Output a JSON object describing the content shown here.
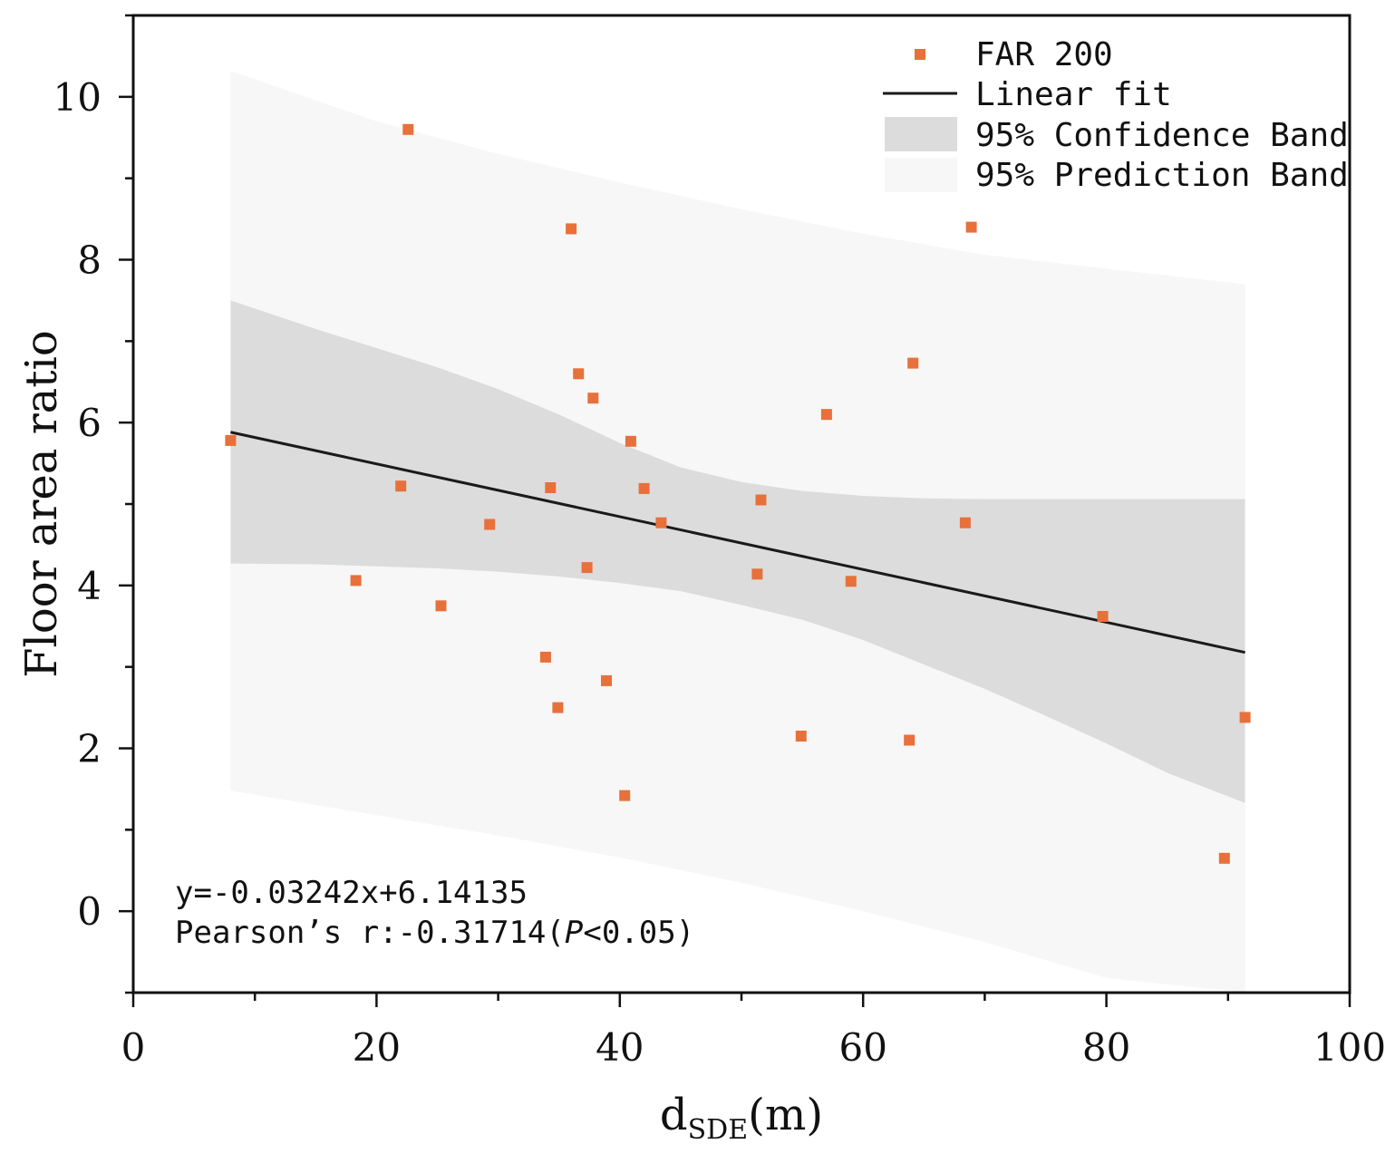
{
  "chart_data": {
    "type": "scatter",
    "title": "",
    "xlabel_main": "d",
    "xlabel_sub": "SDE",
    "xlabel_unit": "(m)",
    "ylabel": "Floor area ratio",
    "xlim": [
      0,
      100
    ],
    "ylim": [
      -1,
      11
    ],
    "xticks": [
      0,
      20,
      40,
      60,
      80,
      100
    ],
    "xtick_labels": [
      "0",
      "20",
      "40",
      "60",
      "80",
      "100"
    ],
    "yticks": [
      0,
      2,
      4,
      6,
      8,
      10
    ],
    "ytick_labels": [
      "0",
      "2",
      "4",
      "6",
      "8",
      "10"
    ],
    "grid": false,
    "legend_position": "top-right",
    "legend": {
      "scatter_label": "FAR 200",
      "fit_label": "Linear fit",
      "confidence_label": "95% Confidence Band",
      "prediction_label": "95% Prediction Band"
    },
    "colors": {
      "points": "#e8703a",
      "fit_line": "#1a1a1a",
      "confidence_band": "#dcdcdc",
      "prediction_band": "#f7f7f7"
    },
    "series": [
      {
        "name": "FAR 200",
        "x": [
          8.0,
          18.3,
          22.0,
          22.6,
          25.3,
          29.3,
          33.9,
          34.3,
          34.9,
          36.0,
          36.6,
          37.3,
          37.8,
          38.9,
          40.4,
          40.9,
          42.0,
          43.4,
          51.3,
          51.6,
          54.9,
          57.0,
          59.0,
          63.8,
          64.1,
          68.4,
          68.9,
          79.7,
          89.7,
          91.4
        ],
        "y": [
          5.78,
          4.06,
          5.22,
          9.6,
          3.75,
          4.75,
          3.12,
          5.2,
          2.5,
          8.38,
          6.6,
          4.22,
          6.3,
          2.83,
          1.42,
          5.77,
          5.19,
          4.77,
          4.14,
          5.05,
          2.15,
          6.1,
          4.05,
          2.1,
          6.73,
          4.77,
          8.4,
          3.62,
          0.65,
          2.38
        ]
      }
    ],
    "fit": {
      "slope": -0.03242,
      "intercept": 6.14135,
      "x_range": [
        8.0,
        91.4
      ]
    },
    "confidence_band": {
      "x": [
        8,
        15,
        25,
        30,
        35,
        40,
        45,
        50,
        55,
        60,
        65,
        70,
        75,
        80,
        85,
        91.4
      ],
      "lower": [
        4.27,
        4.26,
        4.21,
        4.17,
        4.11,
        4.03,
        3.93,
        3.76,
        3.58,
        3.33,
        3.03,
        2.73,
        2.4,
        2.06,
        1.7,
        1.33
      ],
      "upper": [
        7.5,
        7.15,
        6.68,
        6.41,
        6.1,
        5.75,
        5.45,
        5.27,
        5.16,
        5.1,
        5.07,
        5.06,
        5.06,
        5.06,
        5.06,
        5.06
      ]
    },
    "prediction_band": {
      "x": [
        8,
        20,
        30,
        40,
        50,
        60,
        70,
        80,
        91.4
      ],
      "lower": [
        1.48,
        1.18,
        0.93,
        0.66,
        0.35,
        0.0,
        -0.38,
        -0.82,
        -1.0
      ],
      "upper": [
        10.32,
        9.7,
        9.3,
        8.95,
        8.62,
        8.32,
        8.06,
        7.89,
        7.7
      ]
    },
    "annotations": {
      "equation": "y=-0.03242x+6.14135",
      "pearson_prefix": "Pearson’s r:-0.31714(",
      "pearson_p": "P",
      "pearson_suffix": "<0.05)"
    }
  }
}
